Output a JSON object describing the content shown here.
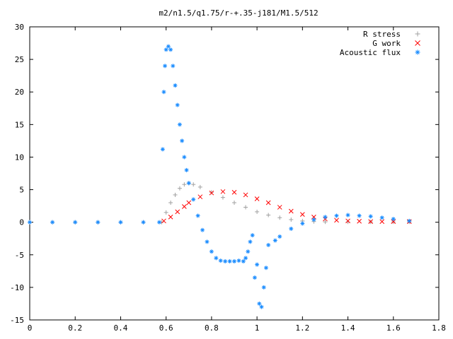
{
  "chart_data": {
    "type": "scatter",
    "title": "m2/n1.5/q1.75/r-+.35-j181/M1.5/512",
    "xlabel": "",
    "ylabel": "",
    "xlim": [
      0,
      1.8
    ],
    "ylim": [
      -15,
      30
    ],
    "x_ticks": [
      "0",
      "0.2",
      "0.4",
      "0.6",
      "0.8",
      "1",
      "1.2",
      "1.4",
      "1.6",
      "1.8"
    ],
    "y_ticks": [
      "30",
      "25",
      "20",
      "15",
      "10",
      "5",
      "0",
      "-5",
      "-10",
      "-15"
    ],
    "legend_position": "top-right",
    "series": [
      {
        "name": "R stress",
        "marker": "+",
        "color": "#a0a0a0",
        "x": [
          0.0,
          0.1,
          0.2,
          0.3,
          0.4,
          0.5,
          0.58,
          0.6,
          0.62,
          0.64,
          0.66,
          0.68,
          0.7,
          0.72,
          0.75,
          0.8,
          0.85,
          0.9,
          0.95,
          1.0,
          1.05,
          1.1,
          1.15,
          1.2,
          1.25,
          1.3,
          1.4,
          1.5,
          1.6,
          1.67
        ],
        "y": [
          0,
          0,
          0,
          0,
          0,
          0,
          0,
          1.5,
          3.0,
          4.2,
          5.2,
          5.8,
          6.0,
          5.8,
          5.4,
          4.6,
          3.8,
          3.0,
          2.3,
          1.6,
          1.1,
          0.7,
          0.4,
          0.2,
          0.1,
          0.05,
          0.05,
          0.05,
          0.05,
          0.05
        ]
      },
      {
        "name": "G work",
        "marker": "x",
        "color": "#ff0000",
        "x": [
          0.59,
          0.62,
          0.65,
          0.68,
          0.7,
          0.75,
          0.8,
          0.85,
          0.9,
          0.95,
          1.0,
          1.05,
          1.1,
          1.15,
          1.2,
          1.25,
          1.3,
          1.35,
          1.4,
          1.45,
          1.5,
          1.55,
          1.6,
          1.67
        ],
        "y": [
          0.2,
          0.8,
          1.6,
          2.4,
          3.0,
          3.9,
          4.5,
          4.7,
          4.6,
          4.2,
          3.6,
          3.0,
          2.3,
          1.7,
          1.2,
          0.8,
          0.5,
          0.3,
          0.2,
          0.15,
          0.1,
          0.1,
          0.1,
          0.1
        ]
      },
      {
        "name": "Acoustic flux",
        "marker": "*",
        "color": "#1a8cff",
        "x": [
          0.0,
          0.1,
          0.2,
          0.3,
          0.4,
          0.5,
          0.57,
          0.585,
          0.59,
          0.595,
          0.6,
          0.61,
          0.62,
          0.63,
          0.64,
          0.65,
          0.66,
          0.67,
          0.68,
          0.69,
          0.7,
          0.72,
          0.74,
          0.76,
          0.78,
          0.8,
          0.82,
          0.84,
          0.86,
          0.88,
          0.9,
          0.92,
          0.94,
          0.95,
          0.96,
          0.97,
          0.98,
          0.99,
          1.0,
          1.01,
          1.02,
          1.03,
          1.04,
          1.05,
          1.08,
          1.1,
          1.15,
          1.2,
          1.25,
          1.3,
          1.35,
          1.4,
          1.45,
          1.5,
          1.55,
          1.6,
          1.67
        ],
        "y": [
          0,
          0,
          0,
          0,
          0,
          0,
          0,
          11.2,
          20,
          24,
          26.5,
          27,
          26.5,
          24,
          21,
          18,
          15,
          12.5,
          10,
          8,
          6,
          3.5,
          1.0,
          -1.2,
          -3.0,
          -4.5,
          -5.5,
          -5.9,
          -6.0,
          -6.0,
          -6.0,
          -5.9,
          -6.0,
          -5.5,
          -4.5,
          -3.0,
          -2.0,
          -8.5,
          -6.5,
          -12.5,
          -13.0,
          -10.0,
          -7.0,
          -3.5,
          -2.8,
          -2.2,
          -1.0,
          -0.2,
          0.4,
          0.8,
          1.0,
          1.1,
          1.0,
          0.9,
          0.7,
          0.5,
          0.2
        ]
      }
    ]
  }
}
